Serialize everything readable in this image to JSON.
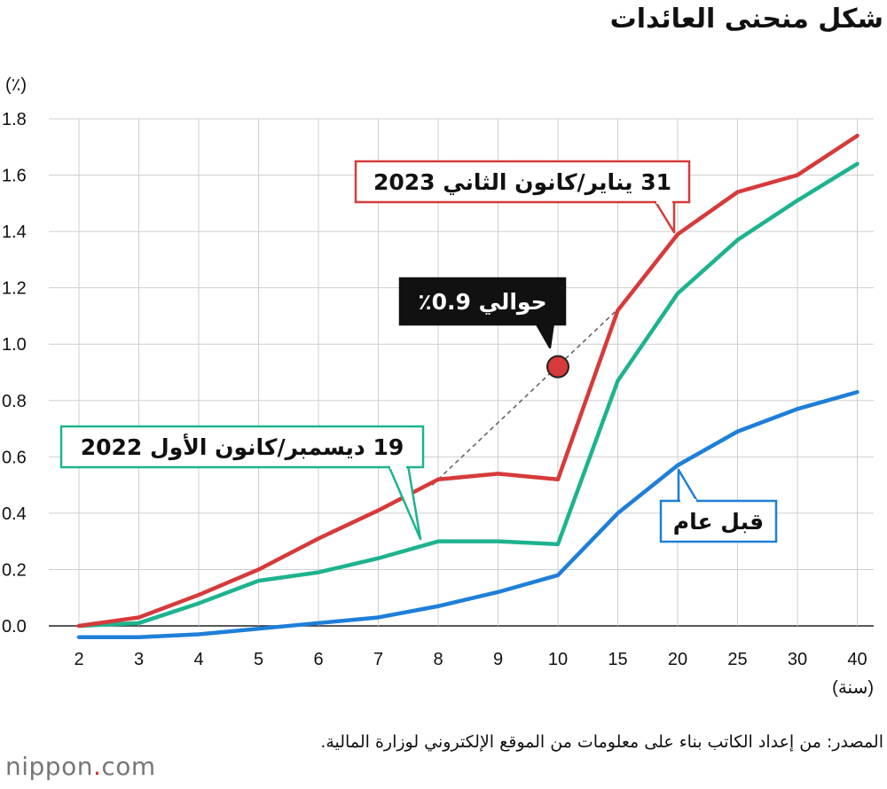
{
  "title": "شكل منحنى العائدات",
  "source": "المصدر: من إعداد الكاتب بناء على معلومات من الموقع الإلكتروني لوزارة المالية.",
  "logo": {
    "text": "nippon",
    "dot": ".",
    "suffix": "com"
  },
  "chart_data": {
    "type": "line",
    "title": "شكل منحنى العائدات",
    "ylabel": "(٪)",
    "xlabel": "(سنة)",
    "categories": [
      "2",
      "3",
      "4",
      "5",
      "6",
      "7",
      "8",
      "9",
      "10",
      "15",
      "20",
      "25",
      "30",
      "40"
    ],
    "ylim": [
      0,
      1.8
    ],
    "yticks": [
      "0.0",
      "0.2",
      "0.4",
      "0.6",
      "0.8",
      "1.0",
      "1.2",
      "1.4",
      "1.6",
      "1.8"
    ],
    "grid": true,
    "series": [
      {
        "name": "31 يناير/كانون الثاني 2023",
        "color": "#d63a3a",
        "values": [
          0.0,
          0.03,
          0.11,
          0.2,
          0.31,
          0.41,
          0.52,
          0.54,
          0.52,
          1.12,
          1.39,
          1.54,
          1.6,
          1.74
        ]
      },
      {
        "name": "19 ديسمبر/كانون الأول 2022",
        "color": "#1db38e",
        "values": [
          0.0,
          0.01,
          0.08,
          0.16,
          0.19,
          0.24,
          0.3,
          0.3,
          0.29,
          0.87,
          1.18,
          1.37,
          1.51,
          1.64
        ]
      },
      {
        "name": "قبل عام",
        "color": "#1e7fd8",
        "values": [
          -0.04,
          -0.04,
          -0.03,
          -0.01,
          0.01,
          0.03,
          0.07,
          0.12,
          0.18,
          0.4,
          0.57,
          0.69,
          0.77,
          0.83
        ]
      }
    ],
    "annotation": {
      "label": "حوالي 0.9٪",
      "x": "10",
      "y": 0.92,
      "color": "#d63a3a"
    }
  }
}
